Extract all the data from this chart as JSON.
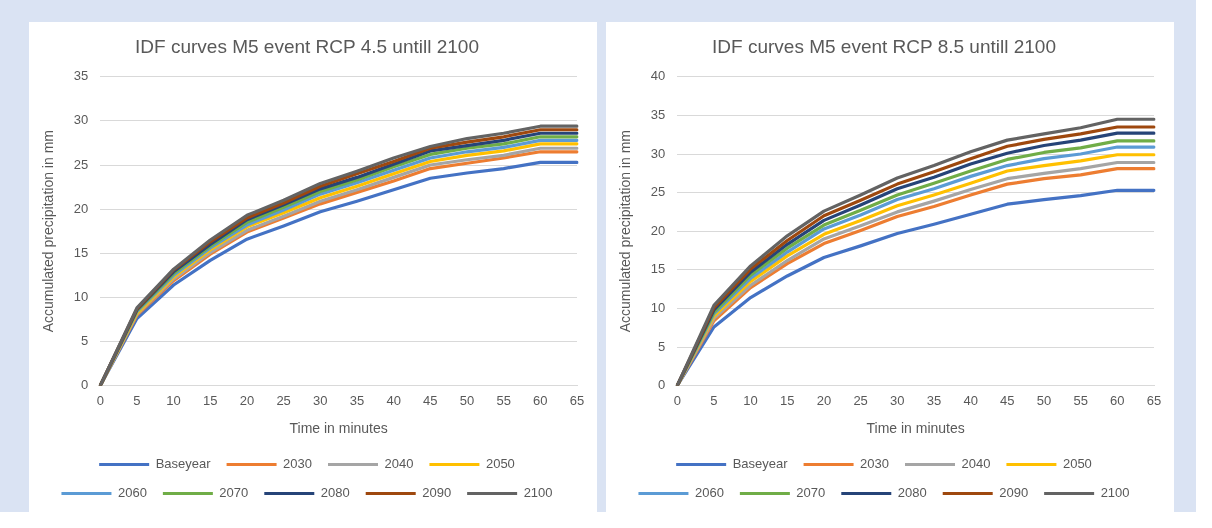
{
  "chart_data": [
    {
      "type": "line",
      "title": "IDF curves M5 event RCP 4.5 untill 2100",
      "xlabel": "Time in minutes",
      "ylabel": "Accumulated precipitation in mm",
      "categories": [
        "0",
        "5",
        "10",
        "15",
        "20",
        "25",
        "30",
        "35",
        "40",
        "45",
        "50",
        "55",
        "60",
        "65"
      ],
      "ylim": [
        0,
        35
      ],
      "yticks": [
        0,
        5,
        10,
        15,
        20,
        25,
        30,
        35
      ],
      "grid": "y",
      "legend": "bottom",
      "marker": "none",
      "line_style": "solid",
      "series": [
        {
          "name": "Baseyear",
          "color": "#4472c4",
          "values": [
            0,
            7.6,
            11.4,
            14.2,
            16.6,
            18.1,
            19.7,
            20.9,
            22.2,
            23.5,
            24.1,
            24.6,
            25.3,
            25.3
          ]
        },
        {
          "name": "2030",
          "color": "#ed7d31",
          "values": [
            0,
            8.0,
            11.9,
            14.9,
            17.4,
            19.0,
            20.6,
            21.9,
            23.2,
            24.6,
            25.2,
            25.8,
            26.5,
            26.5
          ]
        },
        {
          "name": "2040",
          "color": "#a5a5a5",
          "values": [
            0,
            8.1,
            12.1,
            15.1,
            17.6,
            19.2,
            20.9,
            22.2,
            23.6,
            25.0,
            25.6,
            26.1,
            26.9,
            26.9
          ]
        },
        {
          "name": "2050",
          "color": "#ffc000",
          "values": [
            0,
            8.2,
            12.3,
            15.4,
            18.0,
            19.6,
            21.3,
            22.6,
            24.0,
            25.4,
            26.1,
            26.6,
            27.4,
            27.4
          ]
        },
        {
          "name": "2060",
          "color": "#5b9bd5",
          "values": [
            0,
            8.4,
            12.5,
            15.6,
            18.2,
            19.9,
            21.7,
            23.0,
            24.4,
            25.8,
            26.5,
            27.0,
            27.8,
            27.8
          ]
        },
        {
          "name": "2070",
          "color": "#70ad47",
          "values": [
            0,
            8.5,
            12.7,
            15.8,
            18.5,
            20.2,
            22.0,
            23.3,
            24.8,
            26.2,
            26.9,
            27.4,
            28.2,
            28.2
          ]
        },
        {
          "name": "2080",
          "color": "#264478",
          "values": [
            0,
            8.6,
            12.9,
            16.0,
            18.8,
            20.5,
            22.3,
            23.6,
            25.1,
            26.6,
            27.2,
            27.8,
            28.6,
            28.6
          ]
        },
        {
          "name": "2090",
          "color": "#9e480e",
          "values": [
            0,
            8.7,
            13.1,
            16.3,
            19.0,
            20.7,
            22.6,
            24.0,
            25.4,
            26.9,
            27.6,
            28.2,
            29.0,
            29.0
          ]
        },
        {
          "name": "2100",
          "color": "#636363",
          "values": [
            0,
            8.8,
            13.2,
            16.5,
            19.3,
            21.0,
            22.9,
            24.3,
            25.8,
            27.1,
            28.0,
            28.6,
            29.4,
            29.4
          ]
        }
      ]
    },
    {
      "type": "line",
      "title": "IDF curves M5 event RCP 8.5 untill 2100",
      "xlabel": "Time in minutes",
      "ylabel": "Accumulated precipitation in mm",
      "categories": [
        "0",
        "5",
        "10",
        "15",
        "20",
        "25",
        "30",
        "35",
        "40",
        "45",
        "50",
        "55",
        "60",
        "65"
      ],
      "ylim": [
        0,
        40
      ],
      "yticks": [
        0,
        5,
        10,
        15,
        20,
        25,
        30,
        35,
        40
      ],
      "grid": "y",
      "legend": "bottom",
      "marker": "none",
      "line_style": "solid",
      "series": [
        {
          "name": "Baseyear",
          "color": "#4472c4",
          "values": [
            0,
            7.6,
            11.4,
            14.2,
            16.6,
            18.1,
            19.7,
            20.9,
            22.2,
            23.5,
            24.1,
            24.6,
            25.3,
            25.3
          ]
        },
        {
          "name": "2030",
          "color": "#ed7d31",
          "values": [
            0,
            8.4,
            12.7,
            15.8,
            18.4,
            20.1,
            21.9,
            23.2,
            24.7,
            26.1,
            26.8,
            27.3,
            28.1,
            28.1
          ]
        },
        {
          "name": "2040",
          "color": "#a5a5a5",
          "values": [
            0,
            8.7,
            13.0,
            16.2,
            19.0,
            20.7,
            22.5,
            23.9,
            25.4,
            26.8,
            27.5,
            28.1,
            28.9,
            28.9
          ]
        },
        {
          "name": "2050",
          "color": "#ffc000",
          "values": [
            0,
            9.0,
            13.5,
            16.8,
            19.6,
            21.4,
            23.3,
            24.7,
            26.2,
            27.8,
            28.5,
            29.1,
            29.9,
            29.9
          ]
        },
        {
          "name": "2060",
          "color": "#5b9bd5",
          "values": [
            0,
            9.3,
            13.9,
            17.3,
            20.3,
            22.1,
            24.1,
            25.5,
            27.1,
            28.5,
            29.4,
            30.0,
            30.9,
            30.9
          ]
        },
        {
          "name": "2070",
          "color": "#70ad47",
          "values": [
            0,
            9.5,
            14.3,
            17.8,
            20.8,
            22.7,
            24.7,
            26.2,
            27.8,
            29.3,
            30.2,
            30.8,
            31.7,
            31.7
          ]
        },
        {
          "name": "2080",
          "color": "#264478",
          "values": [
            0,
            9.8,
            14.7,
            18.3,
            21.4,
            23.4,
            25.5,
            27.0,
            28.7,
            30.1,
            31.1,
            31.8,
            32.7,
            32.7
          ]
        },
        {
          "name": "2090",
          "color": "#9e480e",
          "values": [
            0,
            10.1,
            15.1,
            18.8,
            22.0,
            24.0,
            26.1,
            27.7,
            29.4,
            31.0,
            31.9,
            32.6,
            33.5,
            33.5
          ]
        },
        {
          "name": "2100",
          "color": "#636363",
          "values": [
            0,
            10.4,
            15.5,
            19.4,
            22.6,
            24.7,
            26.9,
            28.5,
            30.3,
            31.8,
            32.6,
            33.4,
            34.5,
            34.5
          ]
        }
      ]
    }
  ]
}
